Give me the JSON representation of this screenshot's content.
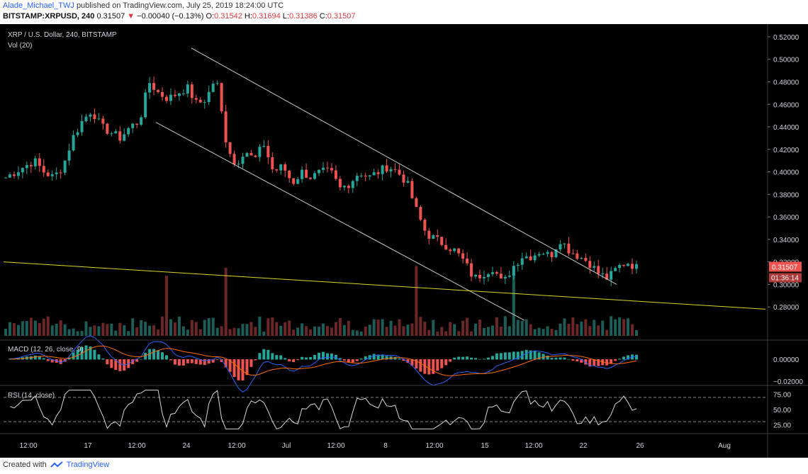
{
  "header": {
    "author": "Alade_Michael_TWJ",
    "published_text": "published on TradingView.com, July 25, 2019 18:24:00 UTC",
    "symbol": "BITSTAMP:XRPUSD, 240",
    "last": "0.31507",
    "change": "−0.00040 (−0.13%)",
    "o_label": "O:",
    "o": "0.31542",
    "h_label": "H:",
    "h": "0.31694",
    "l_label": "L:",
    "l": "0.31386",
    "c_label": "C:",
    "c": "0.31507"
  },
  "footer": {
    "created_with": "Created with",
    "brand": "TradingView"
  },
  "colors": {
    "up": "#26a69a",
    "down": "#ef5350",
    "vol_up": "#1d5d57",
    "vol_down": "#6b2626",
    "channel": "#c8c8c8",
    "trend": "#d9d629",
    "macd": "#2962ff",
    "signal": "#ff6d00",
    "rsi": "#d8d8d8",
    "price_tag": "#ef5350"
  },
  "chart_data": [
    {
      "type": "candlestick",
      "title": "XRP / U.S. Dollar, 240, BITSTAMP",
      "volume_label": "Vol (20)",
      "ylim": [
        0.265,
        0.525
      ],
      "y_ticks": [
        "0.52000",
        "0.50000",
        "0.48000",
        "0.46000",
        "0.44000",
        "0.42000",
        "0.40000",
        "0.38000",
        "0.36000",
        "0.34000",
        "0.32000",
        "0.30000",
        "0.28000"
      ],
      "x_ticks": [
        "12:00",
        "17",
        "12:00",
        "24",
        "12:00",
        "Jul",
        "12:00",
        "8",
        "12:00",
        "15",
        "12:00",
        "22",
        "26",
        "Aug"
      ],
      "last_price": "0.31507",
      "countdown": "01:36:14",
      "close_path": [
        0.395,
        0.4,
        0.405,
        0.41,
        0.4,
        0.395,
        0.405,
        0.43,
        0.445,
        0.455,
        0.44,
        0.435,
        0.43,
        0.44,
        0.445,
        0.48,
        0.47,
        0.465,
        0.47,
        0.475,
        0.46,
        0.465,
        0.485,
        0.43,
        0.405,
        0.42,
        0.41,
        0.425,
        0.4,
        0.405,
        0.39,
        0.4,
        0.395,
        0.4,
        0.4,
        0.385,
        0.39,
        0.4,
        0.395,
        0.4,
        0.405,
        0.4,
        0.39,
        0.365,
        0.345,
        0.34,
        0.335,
        0.33,
        0.32,
        0.305,
        0.31,
        0.315,
        0.3,
        0.315,
        0.325,
        0.325,
        0.33,
        0.325,
        0.34,
        0.33,
        0.325,
        0.32,
        0.31,
        0.305,
        0.315,
        0.32,
        0.315
      ],
      "channel_upper": [
        [
          0.51,
          0.335
        ]
      ],
      "channel_lower": [
        [
          0.445,
          0.27
        ]
      ],
      "trendline": [
        0.32,
        0.278
      ]
    },
    {
      "type": "line",
      "title": "MACD (12, 26, close, 9)",
      "y_ticks": [
        "0.00000",
        "−0.02000"
      ],
      "series": [
        {
          "values": []
        },
        {
          "values": []
        }
      ]
    },
    {
      "type": "line",
      "title": "RSI (14, close)",
      "y_ticks": [
        "75.00",
        "50.00",
        "25.00"
      ],
      "levels": [
        70,
        30
      ],
      "ylim": [
        15,
        85
      ]
    }
  ]
}
